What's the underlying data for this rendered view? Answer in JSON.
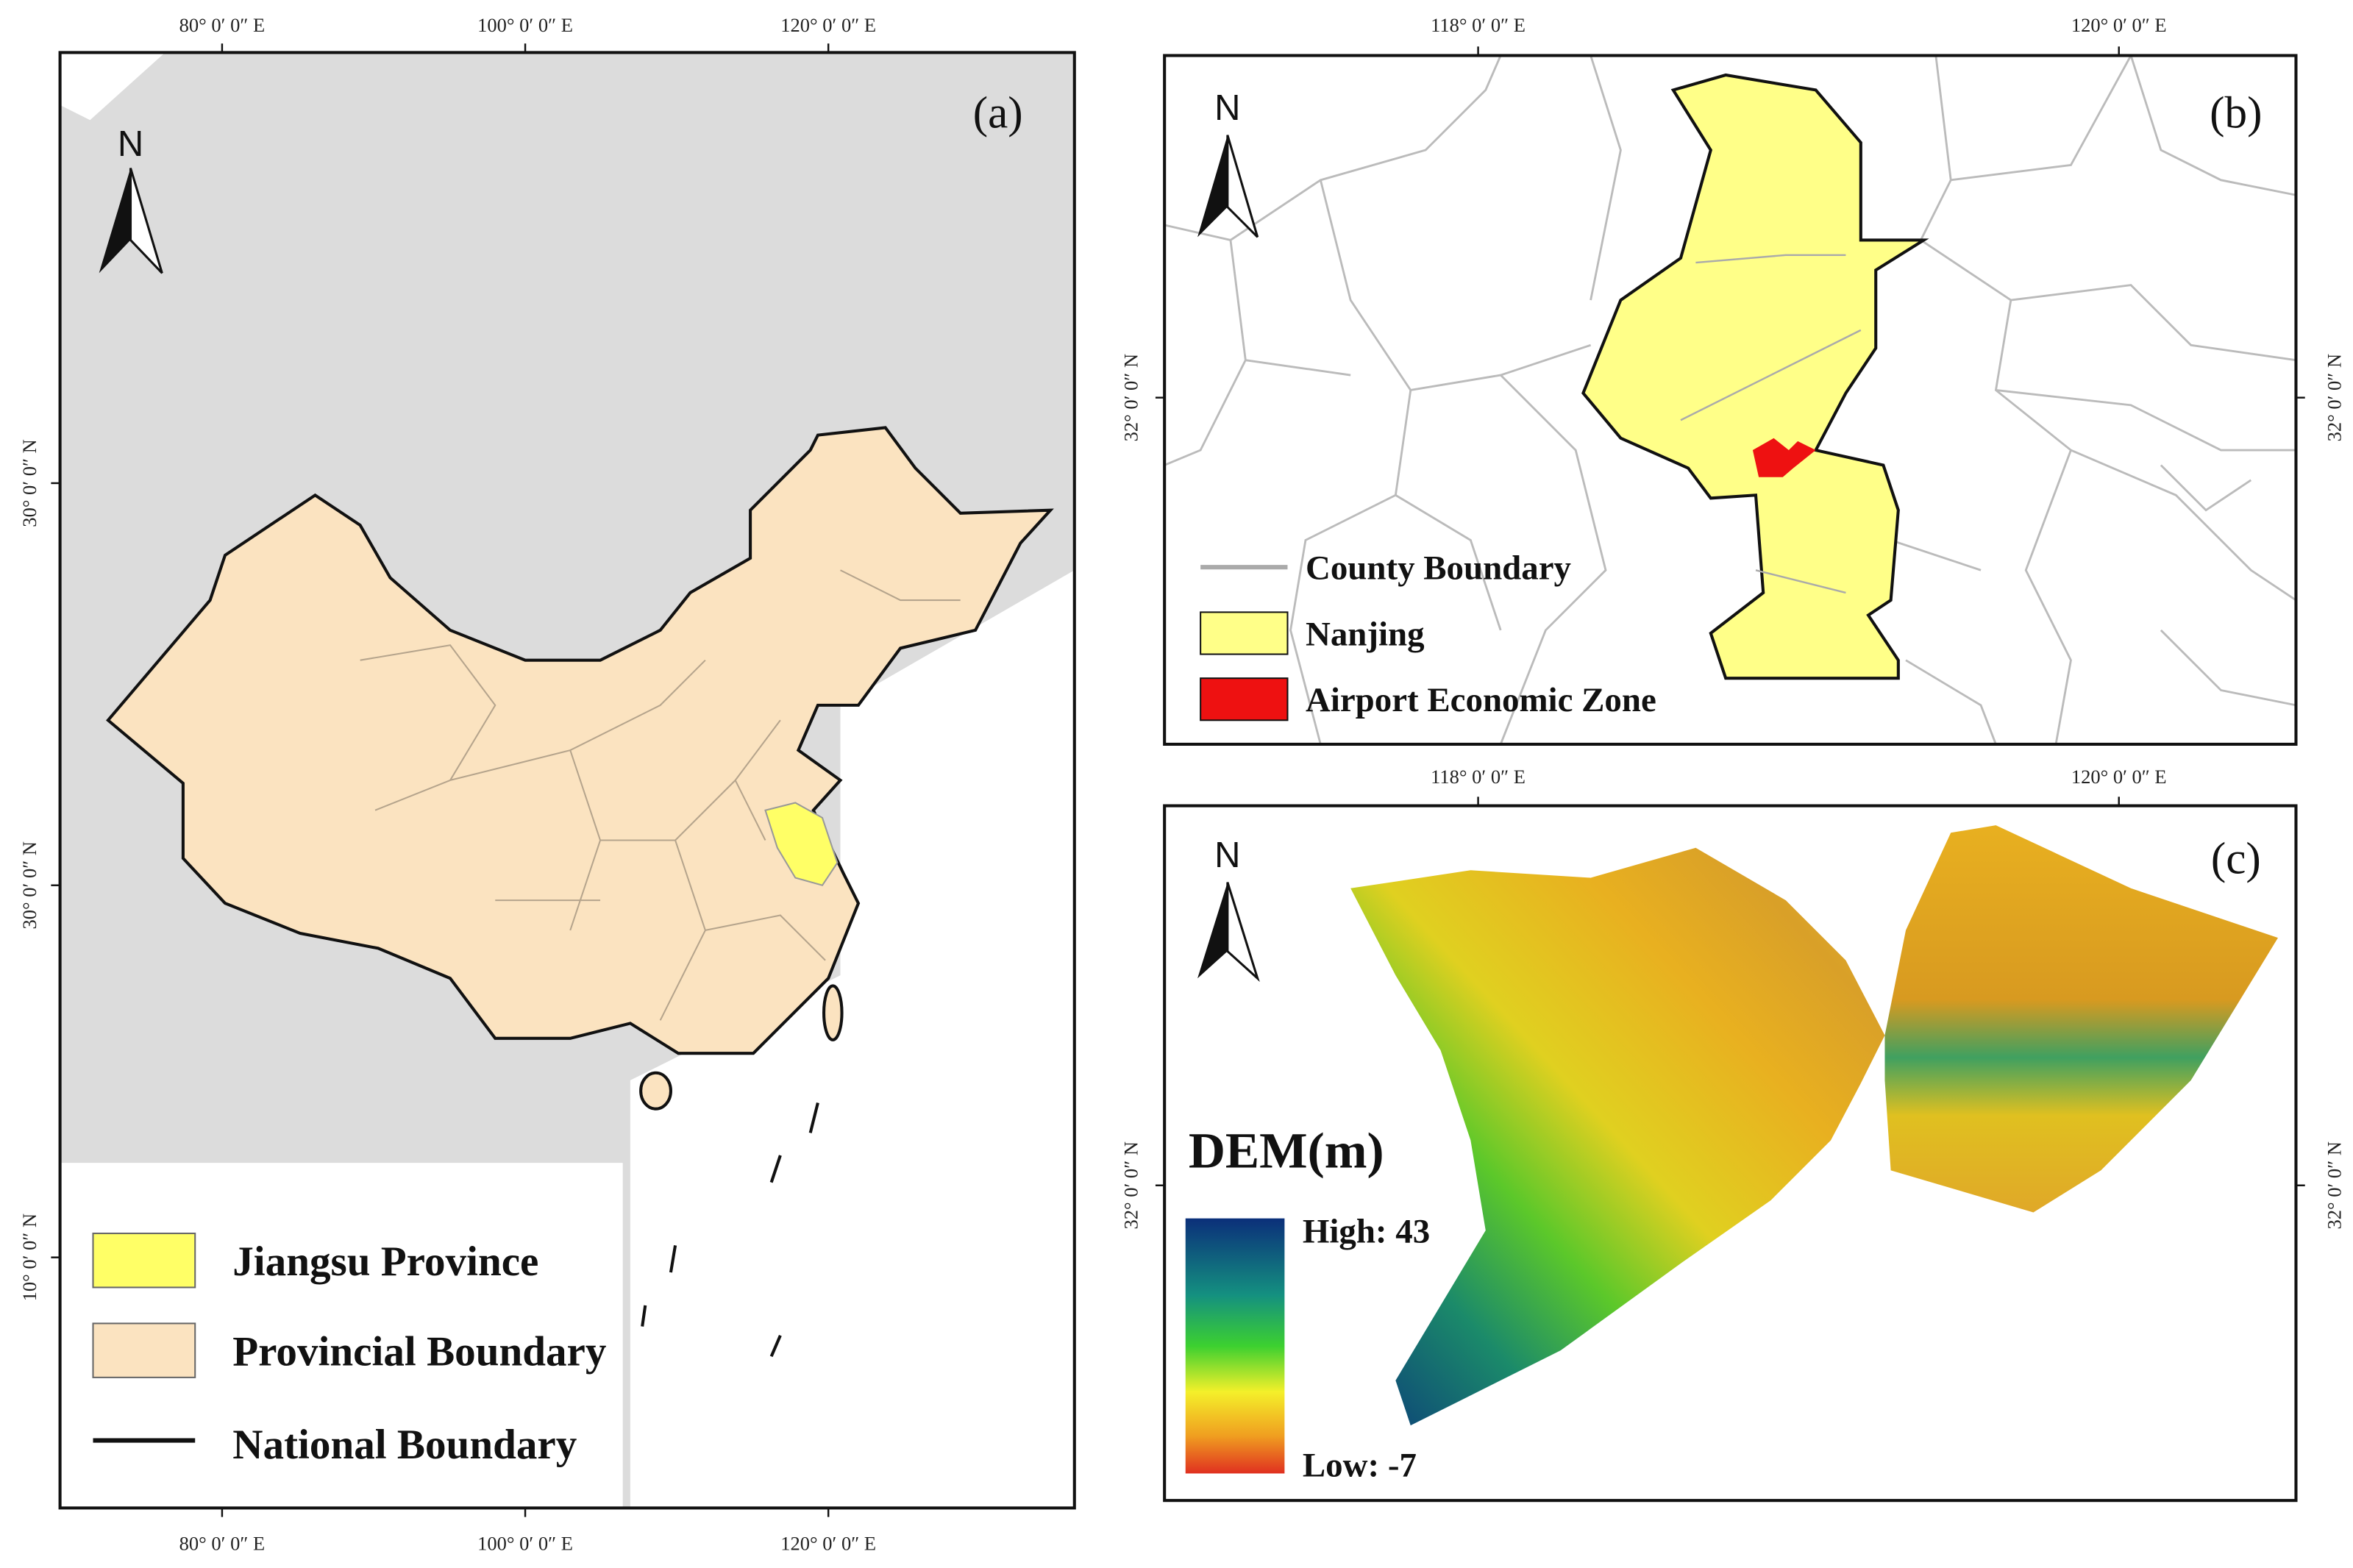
{
  "panels": [
    {
      "label": "(a)",
      "north": "N",
      "top_ticks": [
        "80° 0′ 0″ E",
        "100° 0′ 0″ E",
        "120° 0′ 0″ E"
      ],
      "bottom_ticks": [
        "80° 0′ 0″ E",
        "100° 0′ 0″ E",
        "120° 0′ 0″ E"
      ],
      "left_ticks": [
        "30° 0′ 0″ N",
        "30° 0′ 0″ N",
        "10° 0′ 0″ N"
      ],
      "legend": [
        "Jiangsu Province",
        "Provincial Boundary",
        "National Boundary"
      ]
    },
    {
      "label": "(b)",
      "north": "N",
      "top_ticks": [
        "118° 0′ 0″ E",
        "120° 0′ 0″ E"
      ],
      "left_ticks": [
        "32° 0′ 0″ N"
      ],
      "right_ticks": [
        "32° 0′ 0″ N"
      ],
      "legend": [
        "County Boundary",
        "Nanjing",
        "Airport Economic Zone"
      ]
    },
    {
      "label": "(c)",
      "north": "N",
      "top_ticks": [
        "118° 0′ 0″ E",
        "120° 0′ 0″ E"
      ],
      "left_ticks": [
        "32° 0′ 0″ N"
      ],
      "right_ticks": [
        "32° 0′ 0″ N"
      ],
      "legend_title": "DEM(m)",
      "high": "High: 43",
      "low": "Low: -7"
    }
  ]
}
